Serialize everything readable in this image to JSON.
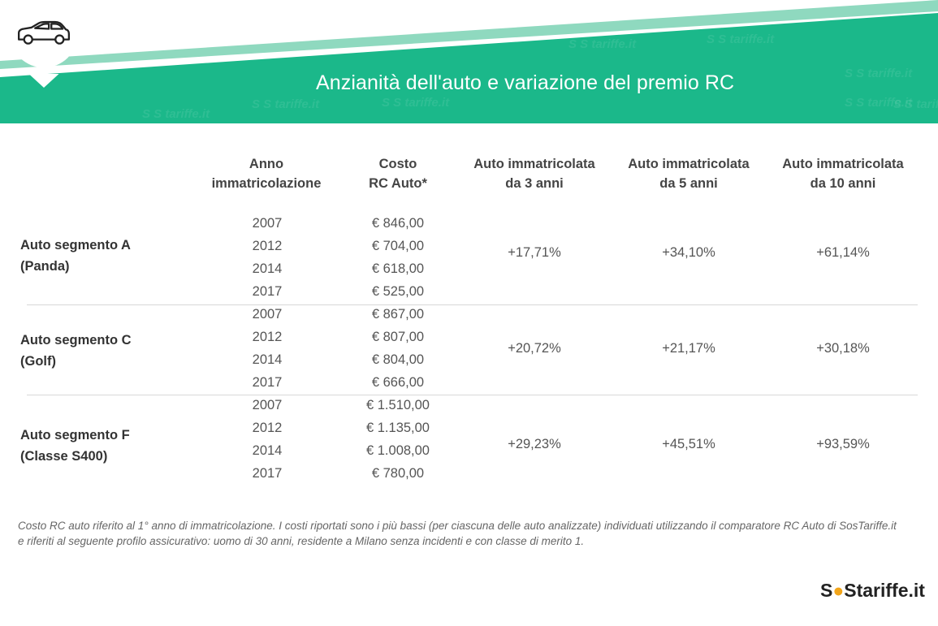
{
  "header": {
    "title": "Anzianità dell'auto e variazione del premio RC",
    "icon": "car-icon",
    "colors": {
      "primary": "#1bb88a",
      "light": "#8fd9bf",
      "white": "#ffffff"
    },
    "watermark": "SOStariffe.it"
  },
  "chart_data": {
    "type": "table",
    "columns": [
      {
        "line1": "Anno",
        "line2": "immatricolazione"
      },
      {
        "line1": "Costo",
        "line2": "RC Auto*"
      },
      {
        "line1": "Auto immatricolata",
        "line2": "da 3 anni"
      },
      {
        "line1": "Auto immatricolata",
        "line2": "da 5 anni"
      },
      {
        "line1": "Auto immatricolata",
        "line2": "da 10 anni"
      }
    ],
    "segments": [
      {
        "label_line1": "Auto segmento A",
        "label_line2": "(Panda)",
        "rows": [
          {
            "year": "2007",
            "cost": "€ 846,00"
          },
          {
            "year": "2012",
            "cost": "€ 704,00"
          },
          {
            "year": "2014",
            "cost": "€ 618,00"
          },
          {
            "year": "2017",
            "cost": "€ 525,00"
          }
        ],
        "var_3": "+17,71%",
        "var_5": "+34,10%",
        "var_10": "+61,14%"
      },
      {
        "label_line1": "Auto segmento C",
        "label_line2": "(Golf)",
        "rows": [
          {
            "year": "2007",
            "cost": "€ 867,00"
          },
          {
            "year": "2012",
            "cost": "€ 807,00"
          },
          {
            "year": "2014",
            "cost": "€ 804,00"
          },
          {
            "year": "2017",
            "cost": "€ 666,00"
          }
        ],
        "var_3": "+20,72%",
        "var_5": "+21,17%",
        "var_10": "+30,18%"
      },
      {
        "label_line1": "Auto segmento F",
        "label_line2": "(Classe S400)",
        "rows": [
          {
            "year": "2007",
            "cost": "€ 1.510,00"
          },
          {
            "year": "2012",
            "cost": "€ 1.135,00"
          },
          {
            "year": "2014",
            "cost": "€ 1.008,00"
          },
          {
            "year": "2017",
            "cost": "€ 780,00"
          }
        ],
        "var_3": "+29,23%",
        "var_5": "+45,51%",
        "var_10": "+93,59%"
      }
    ]
  },
  "footnote": {
    "line1": "Costo RC auto riferito al 1° anno di immatricolazione. I costi riportati sono i più bassi (per ciascuna delle auto analizzate) individuati utilizzando il comparatore RC Auto di SosTariffe.it",
    "line2": "e riferiti al seguente profilo assicurativo: uomo di 30 anni, residente a Milano senza incidenti e con classe di merito 1."
  },
  "logo": {
    "part1": "S",
    "part2": "S",
    "part3": "tariffe.it"
  }
}
